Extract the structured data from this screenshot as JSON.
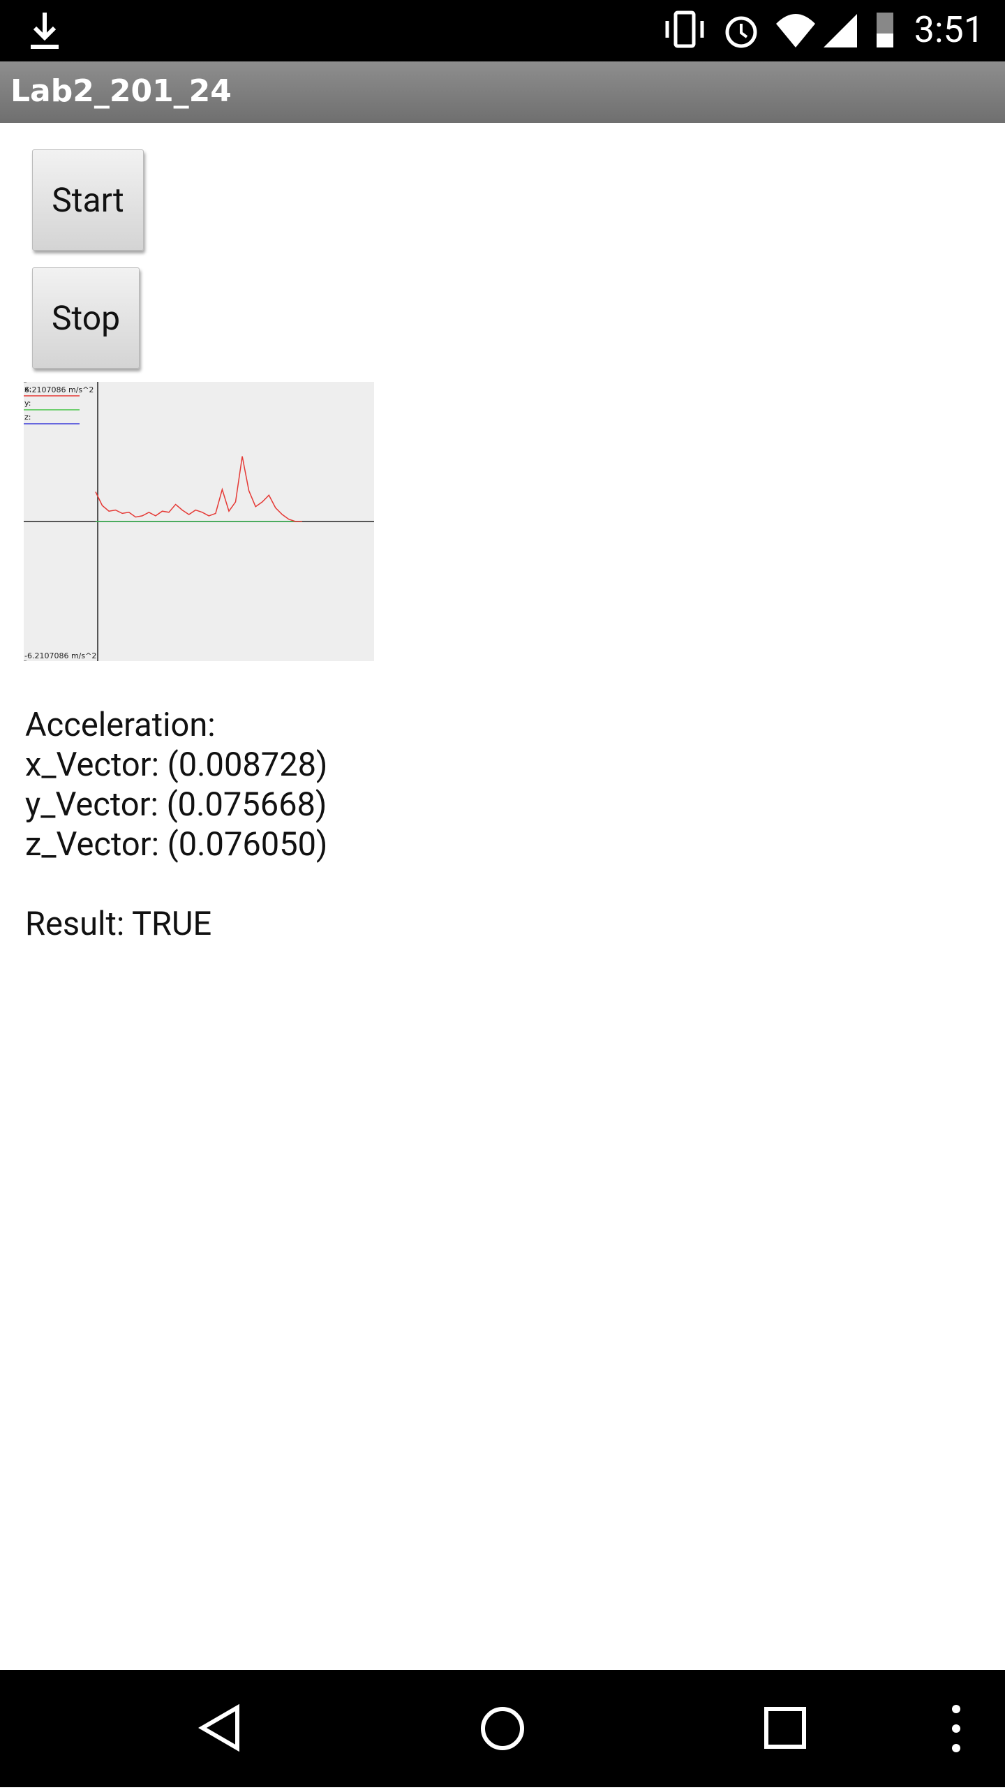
{
  "status_bar": {
    "time": "3:51"
  },
  "app_bar": {
    "title": "Lab2_201_24"
  },
  "buttons": [
    "Start",
    "Stop"
  ],
  "graph": {
    "type": "line",
    "ylim": [
      -6.2107086,
      6.2107086
    ],
    "yticks": [
      {
        "value": 6.2107086,
        "label": "6.2107086 m/s^2"
      },
      {
        "value": -6.2107086,
        "label": "-6.2107086 m/s^2"
      }
    ],
    "series": [
      {
        "name": "x:",
        "color": "#e53935",
        "values": [
          1.32,
          0.71,
          0.46,
          0.51,
          0.36,
          0.41,
          0.2,
          0.25,
          0.41,
          0.25,
          0.46,
          0.41,
          0.76,
          0.51,
          0.31,
          0.51,
          0.41,
          0.25,
          0.36,
          1.43,
          0.46,
          0.87,
          2.9,
          1.37,
          0.66,
          0.87,
          1.17,
          0.61,
          0.31,
          0.1,
          0,
          0
        ]
      },
      {
        "name": "y:",
        "color": "#43c443",
        "values": [
          0,
          0,
          0,
          0,
          0,
          0,
          0,
          0,
          0,
          0,
          0,
          0,
          0,
          0,
          0,
          0,
          0,
          0,
          0,
          0,
          0,
          0,
          0,
          0,
          0,
          0,
          0,
          0,
          0,
          0,
          0,
          0
        ]
      },
      {
        "name": "z:",
        "color": "#3a3ad8",
        "values": [
          0,
          0,
          0,
          0,
          0,
          0,
          0,
          0,
          0,
          0,
          0,
          0,
          0,
          0,
          0,
          0,
          0,
          0,
          0,
          0,
          0,
          0,
          0,
          0,
          0,
          0,
          0,
          0,
          0,
          0,
          0,
          0
        ]
      }
    ]
  },
  "readout": {
    "heading": "Acceleration:",
    "lines": [
      "x_Vector: (0.008728)",
      "y_Vector: (0.075668)",
      "z_Vector: (0.076050)"
    ],
    "result": "Result: TRUE"
  }
}
